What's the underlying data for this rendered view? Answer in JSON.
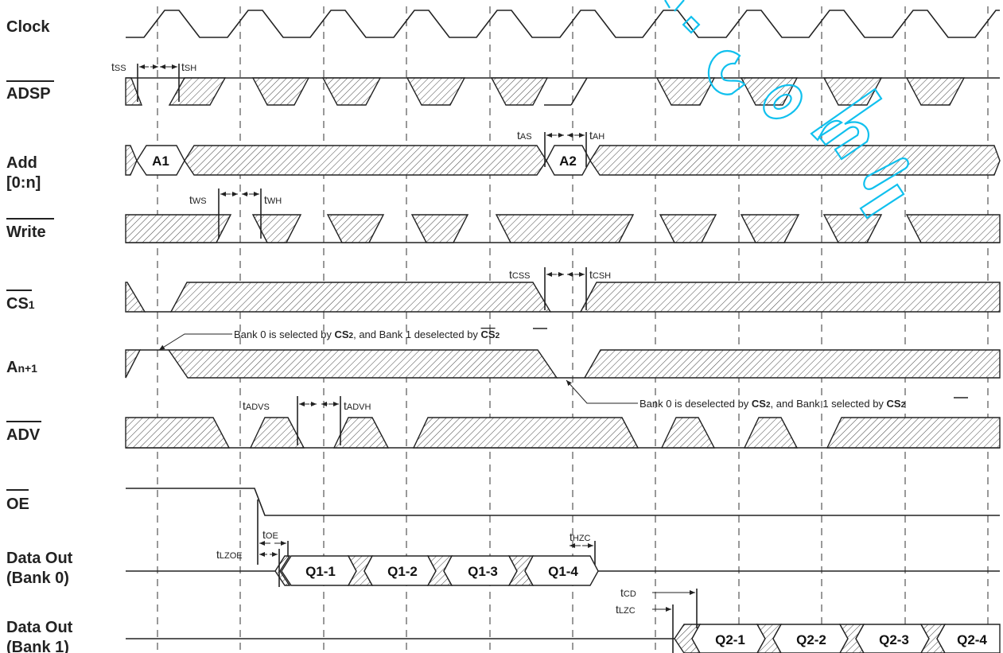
{
  "signals": [
    {
      "id": "clock",
      "label": "Clock",
      "overline": false
    },
    {
      "id": "adsp",
      "label": "ADSP",
      "overline": true
    },
    {
      "id": "add",
      "label": "Add",
      "label2": "[0:n]",
      "overline": false
    },
    {
      "id": "write",
      "label": "Write",
      "overline": true
    },
    {
      "id": "cs1",
      "label": "CS",
      "sub": "1",
      "overline": true
    },
    {
      "id": "an1",
      "label": "A",
      "sub": "n+1",
      "overline": false
    },
    {
      "id": "adv",
      "label": "ADV",
      "overline": true
    },
    {
      "id": "oe",
      "label": "OE",
      "overline": true
    },
    {
      "id": "dout0",
      "label": "Data Out",
      "label2": "(Bank 0)",
      "overline": false
    },
    {
      "id": "dout1",
      "label": "Data Out",
      "label2": "(Bank 1)",
      "overline": false
    }
  ],
  "bus_labels": {
    "a1": "A1",
    "a2": "A2",
    "q1_1": "Q1-1",
    "q1_2": "Q1-2",
    "q1_3": "Q1-3",
    "q1_4": "Q1-4",
    "q2_1": "Q2-1",
    "q2_2": "Q2-2",
    "q2_3": "Q2-3",
    "q2_4": "Q2-4"
  },
  "timing_labels": {
    "tss": {
      "main": "t",
      "sub": "SS"
    },
    "tsh": {
      "main": "t",
      "sub": "SH"
    },
    "tas": {
      "main": "t",
      "sub": "AS"
    },
    "tah": {
      "main": "t",
      "sub": "AH"
    },
    "tws": {
      "main": "t",
      "sub": "WS"
    },
    "twh": {
      "main": "t",
      "sub": "WH"
    },
    "tcss": {
      "main": "t",
      "sub": "CSS"
    },
    "tcsh": {
      "main": "t",
      "sub": "CSH"
    },
    "tadvs": {
      "main": "t",
      "sub": "ADVS"
    },
    "tadvh": {
      "main": "t",
      "sub": "ADVH"
    },
    "toe": {
      "main": "t",
      "sub": "OE"
    },
    "tlzoe": {
      "main": "t",
      "sub": "LZOE"
    },
    "thzc": {
      "main": "t",
      "sub": "HZC"
    },
    "tcd": {
      "main": "t",
      "sub": "CD"
    },
    "tlzc": {
      "main": "t",
      "sub": "LZC"
    }
  },
  "notes": {
    "bank_select": {
      "pre": "Bank 0 is selected by ",
      "b1": "CS",
      "b1sub": "2",
      "mid": ", and Bank 1 deselected by ",
      "b2": "CS",
      "b2sub": "2"
    },
    "bank_deselect": {
      "pre": "Bank 0 is deselected by ",
      "b1": "CS",
      "b1sub": "2",
      "mid": ", and Bank 1 selected by ",
      "b2": "CS",
      "b2sub": "2"
    }
  },
  "watermark": {
    "text": ".com",
    "color": "#10c0ee"
  }
}
